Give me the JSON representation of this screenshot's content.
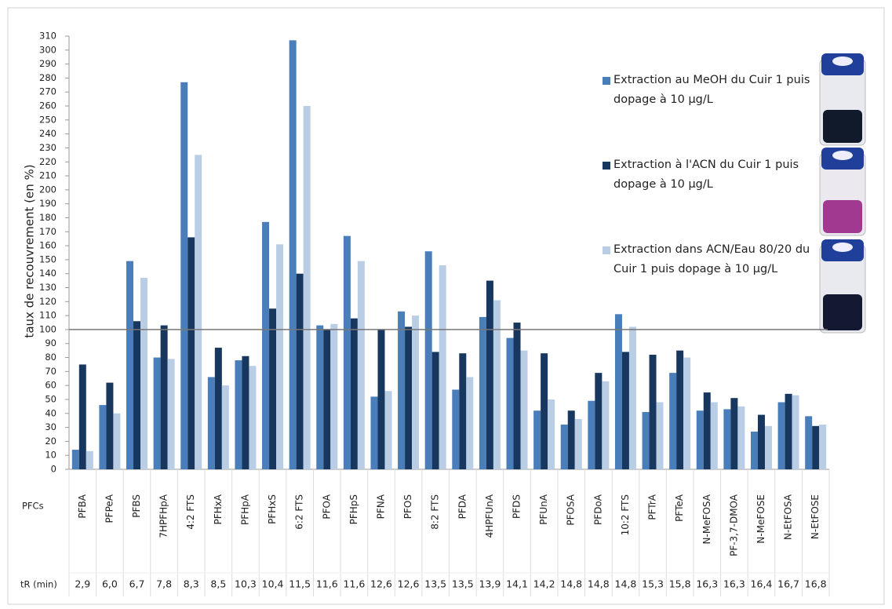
{
  "chart_data": {
    "type": "bar",
    "y_label": "taux de recouvrement (en %)",
    "categories": [
      "PFBA",
      "PFPeA",
      "PFBS",
      "7HPFHpA",
      "4:2 FTS",
      "PFHxA",
      "PFHpA",
      "PFHxS",
      "6:2 FTS",
      "PFOA",
      "PFHpS",
      "PFNA",
      "PFOS",
      "8:2 FTS",
      "PFDA",
      "4HPFUnA",
      "PFDS",
      "PFUnA",
      "PFOSA",
      "PFDoA",
      "10:2 FTS",
      "PFTrA",
      "PFTeA",
      "N-MeFOSA",
      "PF-3,7-DMOA",
      "N-MeFOSE",
      "N-EtFOSA",
      "N-EtFOSE"
    ],
    "series": [
      {
        "name": "Extraction au MeOH du Cuir 1 puis dopage à 10 µg/L",
        "color": "#4a7ebb",
        "values": [
          14,
          46,
          149,
          80,
          277,
          66,
          78,
          177,
          307,
          103,
          167,
          52,
          113,
          156,
          57,
          109,
          94,
          42,
          32,
          49,
          111,
          41,
          69,
          42,
          43,
          27,
          48,
          38
        ]
      },
      {
        "name": "Extraction à l'ACN du Cuir 1 puis dopage à 10 µg/L",
        "color": "#17375e",
        "values": [
          75,
          62,
          106,
          103,
          166,
          87,
          81,
          115,
          140,
          100,
          108,
          100,
          102,
          84,
          83,
          135,
          105,
          83,
          42,
          69,
          84,
          82,
          85,
          55,
          51,
          39,
          54,
          31
        ]
      },
      {
        "name": "Extraction dans ACN/Eau 80/20 du Cuir 1 puis dopage à 10 µg/L",
        "color": "#b9cde5",
        "values": [
          13,
          40,
          137,
          79,
          225,
          60,
          74,
          161,
          260,
          104,
          149,
          56,
          110,
          146,
          66,
          121,
          85,
          50,
          36,
          63,
          102,
          48,
          80,
          48,
          45,
          31,
          53,
          32
        ]
      }
    ],
    "reference_line": 100,
    "ylim": [
      0,
      310
    ],
    "yticks": [
      0,
      10,
      20,
      30,
      40,
      50,
      60,
      70,
      80,
      90,
      100,
      110,
      120,
      130,
      140,
      150,
      160,
      170,
      180,
      190,
      200,
      210,
      220,
      230,
      240,
      250,
      260,
      270,
      280,
      290,
      300,
      310
    ],
    "table_row_labels": [
      "PFCs",
      "tR (min)"
    ],
    "retention_times": [
      "2,9",
      "6,0",
      "6,7",
      "7,8",
      "8,3",
      "8,5",
      "10,3",
      "10,4",
      "11,5",
      "11,6",
      "11,6",
      "12,6",
      "12,6",
      "13,5",
      "13,5",
      "13,9",
      "14,1",
      "14,2",
      "14,8",
      "14,8",
      "14,8",
      "15,3",
      "15,8",
      "16,3",
      "16,3",
      "16,4",
      "16,7",
      "16,8"
    ]
  }
}
